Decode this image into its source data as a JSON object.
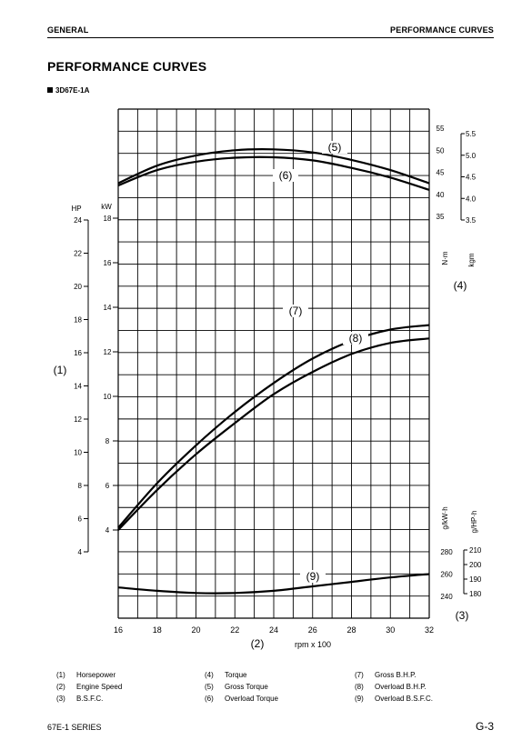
{
  "header": {
    "left": "GENERAL",
    "right": "PERFORMANCE CURVES"
  },
  "title": "PERFORMANCE CURVES",
  "model": "3D67E-1A",
  "legend": [
    [
      {
        "num": "(1)",
        "label": "Horsepower"
      },
      {
        "num": "(2)",
        "label": "Engine Speed"
      },
      {
        "num": "(3)",
        "label": "B.S.F.C."
      }
    ],
    [
      {
        "num": "(4)",
        "label": "Torque"
      },
      {
        "num": "(5)",
        "label": "Gross Torque"
      },
      {
        "num": "(6)",
        "label": "Overload Torque"
      }
    ],
    [
      {
        "num": "(7)",
        "label": "Gross B.H.P."
      },
      {
        "num": "(8)",
        "label": "Overload B.H.P."
      },
      {
        "num": "(9)",
        "label": "Overload B.S.F.C."
      }
    ]
  ],
  "footer": {
    "left": "67E-1 SERIES",
    "right": "G-3"
  },
  "chart_data": {
    "type": "line",
    "x_axis": {
      "unit_label": "rpm x 100",
      "callout": "(2)",
      "range": [
        16,
        32
      ],
      "ticks": [
        "16",
        "18",
        "20",
        "22",
        "24",
        "26",
        "28",
        "30",
        "32"
      ]
    },
    "left_axes": {
      "callout": "(1)",
      "hp": {
        "unit": "HP",
        "range": [
          4,
          24
        ],
        "ticks": [
          "4",
          "6",
          "8",
          "10",
          "12",
          "14",
          "16",
          "18",
          "20",
          "22",
          "24"
        ]
      },
      "kw": {
        "unit": "kW",
        "range": [
          4,
          18
        ],
        "ticks": [
          "4",
          "6",
          "8",
          "10",
          "12",
          "14",
          "16",
          "18"
        ]
      }
    },
    "torque_axes": {
      "callout": "(4)",
      "nm": {
        "unit": "N·m",
        "range": [
          35,
          55
        ],
        "ticks": [
          "35",
          "40",
          "45",
          "50",
          "55"
        ]
      },
      "kgm": {
        "unit": "kgm",
        "range": [
          3.5,
          5.5
        ],
        "ticks": [
          "3.5",
          "4.0",
          "4.5",
          "5.0",
          "5.5"
        ]
      }
    },
    "bsfc_axes": {
      "callout": "(3)",
      "g_kwh": {
        "unit": "g/kW·h",
        "range": [
          240,
          280
        ],
        "ticks": [
          "240",
          "260",
          "280"
        ]
      },
      "g_hph": {
        "unit": "g/HP·h",
        "range": [
          180,
          210
        ],
        "ticks": [
          "180",
          "190",
          "200",
          "210"
        ]
      }
    },
    "series": [
      {
        "name": "(5)",
        "axis": "torque_nm",
        "x": [
          16,
          18,
          20,
          22,
          24,
          26,
          28,
          30,
          32
        ],
        "y": [
          42.5,
          46.5,
          48.8,
          50.0,
          50.2,
          49.5,
          47.8,
          45.5,
          42.5
        ]
      },
      {
        "name": "(6)",
        "axis": "torque_nm",
        "x": [
          16,
          18,
          20,
          22,
          24,
          26,
          28,
          30,
          32
        ],
        "y": [
          42.0,
          45.5,
          47.4,
          48.3,
          48.4,
          47.7,
          46.0,
          43.8,
          41.0
        ]
      },
      {
        "name": "(7)",
        "axis": "power_kw",
        "x": [
          16,
          18,
          20,
          22,
          24,
          26,
          28,
          30,
          32
        ],
        "y": [
          4.1,
          6.1,
          7.8,
          9.3,
          10.6,
          11.7,
          12.5,
          13.0,
          13.2
        ]
      },
      {
        "name": "(8)",
        "axis": "power_kw",
        "x": [
          16,
          18,
          20,
          22,
          24,
          26,
          28,
          30,
          32
        ],
        "y": [
          4.0,
          5.8,
          7.4,
          8.8,
          10.1,
          11.1,
          11.9,
          12.4,
          12.6
        ]
      },
      {
        "name": "(9)",
        "axis": "bsfc_gkwh",
        "x": [
          16,
          18,
          20,
          22,
          24,
          26,
          28,
          30,
          32
        ],
        "y": [
          248,
          245,
          243,
          243,
          245,
          249,
          253,
          257,
          260
        ]
      }
    ]
  }
}
